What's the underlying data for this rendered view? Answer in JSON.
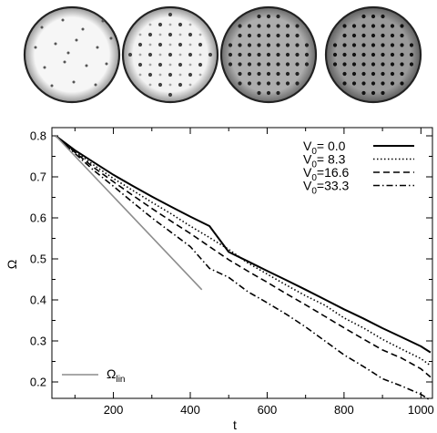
{
  "chart_data": {
    "type": "line",
    "title": "",
    "xlabel": "t",
    "ylabel": "Ω",
    "xlim": [
      40,
      1030
    ],
    "ylim": [
      0.16,
      0.82
    ],
    "x_ticks": [
      200,
      400,
      600,
      800,
      1000
    ],
    "y_ticks": [
      0.2,
      0.3,
      0.4,
      0.5,
      0.6,
      0.7,
      0.8
    ],
    "grid": false,
    "legend_position": "top-right",
    "series": [
      {
        "name": "V₀= 0.0",
        "legend_main": "V",
        "legend_sub": "0",
        "legend_value": "=  0.0",
        "style": "solid",
        "color": "#000000",
        "x": [
          50,
          100,
          150,
          200,
          250,
          300,
          350,
          400,
          450,
          500,
          550,
          600,
          650,
          700,
          750,
          800,
          850,
          900,
          950,
          1000,
          1025
        ],
        "y": [
          0.8,
          0.765,
          0.735,
          0.705,
          0.678,
          0.652,
          0.627,
          0.603,
          0.58,
          0.517,
          0.494,
          0.471,
          0.448,
          0.425,
          0.401,
          0.377,
          0.355,
          0.331,
          0.309,
          0.287,
          0.272
        ]
      },
      {
        "name": "V₀= 8.3",
        "legend_main": "V",
        "legend_sub": "0",
        "legend_value": "=  8.3",
        "style": "dotted",
        "color": "#000000",
        "x": [
          50,
          100,
          150,
          200,
          250,
          300,
          350,
          400,
          450,
          500,
          550,
          600,
          650,
          700,
          750,
          800,
          850,
          900,
          950,
          1000,
          1025
        ],
        "y": [
          0.8,
          0.762,
          0.728,
          0.696,
          0.667,
          0.638,
          0.61,
          0.58,
          0.552,
          0.523,
          0.49,
          0.463,
          0.436,
          0.41,
          0.387,
          0.356,
          0.332,
          0.304,
          0.28,
          0.257,
          0.24
        ]
      },
      {
        "name": "V₀=16.6",
        "legend_main": "V",
        "legend_sub": "0",
        "legend_value": "=16.6",
        "style": "dashed",
        "color": "#000000",
        "x": [
          50,
          100,
          150,
          200,
          250,
          300,
          350,
          400,
          450,
          500,
          550,
          600,
          650,
          700,
          750,
          800,
          850,
          900,
          950,
          1000,
          1025
        ],
        "y": [
          0.8,
          0.76,
          0.722,
          0.688,
          0.655,
          0.623,
          0.592,
          0.562,
          0.53,
          0.498,
          0.47,
          0.443,
          0.415,
          0.388,
          0.36,
          0.332,
          0.305,
          0.278,
          0.258,
          0.232,
          0.212
        ]
      },
      {
        "name": "V₀=33.3",
        "legend_main": "V",
        "legend_sub": "0",
        "legend_value": "=33.3",
        "style": "dashdot",
        "color": "#000000",
        "x": [
          50,
          100,
          150,
          200,
          250,
          300,
          350,
          400,
          450,
          500,
          550,
          600,
          650,
          700,
          750,
          800,
          850,
          900,
          950,
          1000,
          1025
        ],
        "y": [
          0.8,
          0.757,
          0.715,
          0.677,
          0.638,
          0.6,
          0.565,
          0.53,
          0.477,
          0.455,
          0.42,
          0.393,
          0.365,
          0.334,
          0.3,
          0.266,
          0.238,
          0.208,
          0.19,
          0.17,
          0.155
        ]
      },
      {
        "name": "Ωlin",
        "legend_main": "Ω",
        "legend_sub": "lin",
        "legend_value": "",
        "style": "solid",
        "color": "#8c8c8c",
        "x": [
          50,
          430
        ],
        "y": [
          0.8,
          0.425
        ]
      }
    ]
  },
  "thumbnails": [
    {
      "background": "#f6f6f6",
      "dot_color": "#555555",
      "pattern": "sparse"
    },
    {
      "background": "#f2f2f2",
      "dot_color": "#444444",
      "pattern": "grid-sparse"
    },
    {
      "background": "#adadad",
      "dot_color": "#222222",
      "pattern": "grid"
    },
    {
      "background": "#9a9a9a",
      "dot_color": "#111111",
      "pattern": "grid"
    }
  ]
}
